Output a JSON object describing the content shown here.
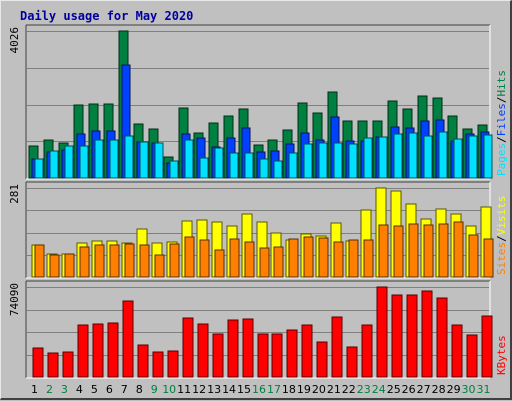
{
  "chart_data": {
    "type": "bar",
    "title": "Daily usage for May 2020",
    "days": [
      "1",
      "2",
      "3",
      "4",
      "5",
      "6",
      "7",
      "8",
      "9",
      "10",
      "11",
      "12",
      "13",
      "14",
      "15",
      "16",
      "17",
      "18",
      "19",
      "20",
      "21",
      "22",
      "23",
      "24",
      "25",
      "26",
      "27",
      "28",
      "29",
      "30",
      "31"
    ],
    "weekend_days": [
      "2",
      "3",
      "9",
      "10",
      "16",
      "17",
      "23",
      "24",
      "30",
      "31"
    ],
    "colors": {
      "hits": "#008040",
      "files": "#0040ff",
      "pages": "#00e0ff",
      "visits": "#ffff00",
      "sites": "#ff8000",
      "kbytes": "#ff0000",
      "weekday_label": "#000000",
      "weekend_label": "#008040"
    },
    "panels": [
      {
        "id": "top",
        "max_label": "4026",
        "ylim": [
          0,
          4026
        ],
        "series": [
          {
            "name": "Hits",
            "color": "#008040",
            "values": [
              880,
              1030,
              960,
              2000,
              2040,
              2030,
              4026,
              1480,
              1340,
              580,
              1910,
              1230,
              1500,
              1690,
              1880,
              900,
              1050,
              1320,
              2060,
              1770,
              2350,
              1550,
              1550,
              1570,
              2100,
              1900,
              2240,
              2200,
              1690,
              1340,
              1460
            ]
          },
          {
            "name": "Files",
            "color": "#0040ff",
            "values": [
              520,
              720,
              760,
              1200,
              1300,
              1300,
              3100,
              990,
              970,
              400,
              1200,
              1100,
              850,
              1100,
              1380,
              720,
              750,
              940,
              1240,
              1050,
              1670,
              1000,
              1000,
              1110,
              1400,
              1360,
              1560,
              1600,
              1000,
              1200,
              1260
            ]
          },
          {
            "name": "Pages",
            "color": "#00e0ff",
            "values": [
              520,
              740,
              890,
              870,
              1050,
              1030,
              1150,
              990,
              970,
              470,
              1030,
              550,
              830,
              690,
              680,
              520,
              460,
              690,
              940,
              970,
              970,
              920,
              1100,
              1130,
              1200,
              1220,
              1140,
              1250,
              1060,
              1150,
              1180
            ]
          }
        ],
        "right_labels": [
          {
            "text": "Pages",
            "color": "#00e0ff"
          },
          {
            "text": "/",
            "color": "#000000"
          },
          {
            "text": "Files",
            "color": "#0040ff"
          },
          {
            "text": "/",
            "color": "#000000"
          },
          {
            "text": "Hits",
            "color": "#008040"
          }
        ]
      },
      {
        "id": "middle",
        "max_label": "281",
        "ylim": [
          0,
          281
        ],
        "series": [
          {
            "name": "Visits",
            "color": "#ffff00",
            "values": [
              102,
              72,
              72,
              107,
              114,
              114,
              108,
              150,
              108,
              110,
              178,
              180,
              175,
              160,
              200,
              173,
              140,
              116,
              137,
              130,
              171,
              115,
              211,
              281,
              270,
              230,
              182,
              214,
              200,
              162,
              220
            ]
          },
          {
            "name": "Sites",
            "color": "#ff8000",
            "values": [
              100,
              70,
              72,
              96,
              100,
              100,
              105,
              102,
              70,
              103,
              126,
              118,
              86,
              120,
              110,
              93,
              95,
              120,
              127,
              122,
              110,
              117,
              117,
              163,
              160,
              168,
              164,
              166,
              174,
              133,
              120
            ]
          }
        ],
        "right_labels": [
          {
            "text": "Sites",
            "color": "#ff8000"
          },
          {
            "text": "/",
            "color": "#000000"
          },
          {
            "text": "Visits",
            "color": "#ffff00"
          }
        ]
      },
      {
        "id": "bottom",
        "max_label": "74090",
        "ylim": [
          0,
          74090
        ],
        "series": [
          {
            "name": "KBytes",
            "color": "#ff0000",
            "values": [
              23500,
              20000,
              20500,
              43000,
              44000,
              44500,
              62500,
              26000,
              20500,
              21500,
              48500,
              44000,
              35500,
              47000,
              48000,
              35000,
              35000,
              39000,
              42500,
              29000,
              49500,
              25000,
              42500,
              74090,
              67500,
              67500,
              70500,
              65000,
              42500,
              34500,
              50000
            ]
          }
        ],
        "right_labels": [
          {
            "text": "KBytes",
            "color": "#ff0000"
          }
        ]
      }
    ]
  }
}
